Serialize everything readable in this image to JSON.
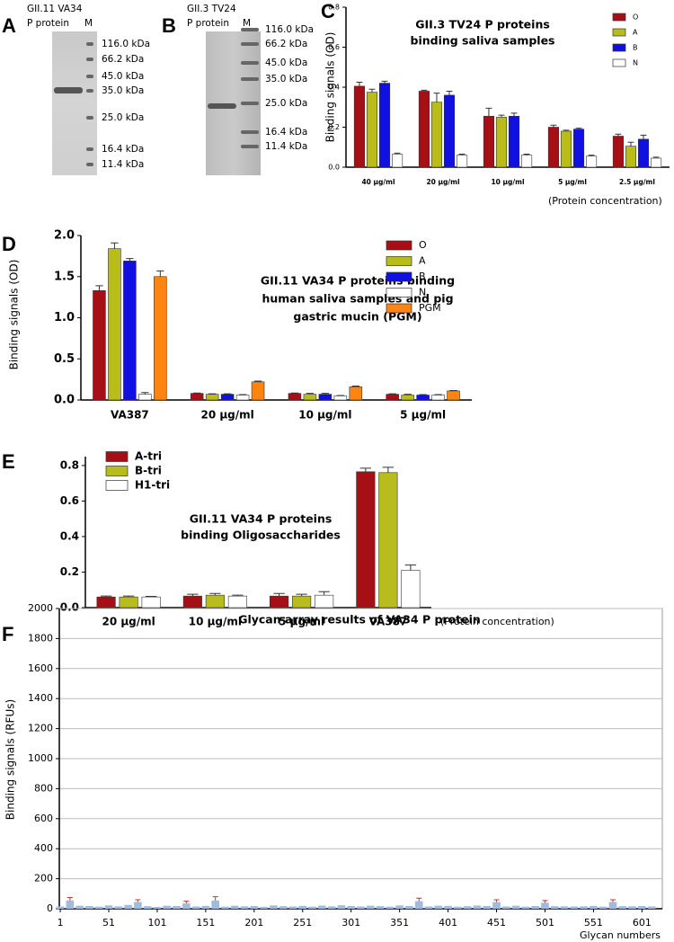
{
  "gels": [
    {
      "panel_label": "A",
      "title": [
        "GII.11 VA34",
        "P protein"
      ],
      "lane_label": "M",
      "markers": [
        "116.0 kDa",
        "66.2 kDa",
        "45.0 kDa",
        "35.0 kDa",
        "25.0 kDa",
        "16.4 kDa",
        "11.4 kDa"
      ]
    },
    {
      "panel_label": "B",
      "title": [
        "GII.3 TV24",
        "P protein"
      ],
      "lane_label": "M",
      "markers": [
        "116.0 kDa",
        "66.2 kDa",
        "45.0 kDa",
        "35.0 kDa",
        "25.0 kDa",
        "16.4 kDa",
        "11.4 kDa"
      ]
    }
  ],
  "chart_data": [
    {
      "type": "bar",
      "panel_label": "C",
      "title": [
        "GII.3 TV24 P proteins",
        "binding saliva samples"
      ],
      "y_label": "Binding signals (OD)",
      "x_label": "(Protein concentration)",
      "categories": [
        "40 μg/ml",
        "20 μg/ml",
        "10 μg/ml",
        "5 μg/ml",
        "2.5 μg/ml"
      ],
      "ylim": [
        0,
        0.8
      ],
      "yticks": [
        {
          "value": 0,
          "label": "0.0"
        },
        0.2,
        0.4,
        0.6,
        0.8
      ],
      "grid": false,
      "series": [
        {
          "name": "O",
          "color": "#a50f15",
          "values": [
            0.405,
            0.38,
            0.255,
            0.2,
            0.155
          ],
          "errors": [
            0.02,
            0.005,
            0.04,
            0.01,
            0.01
          ]
        },
        {
          "name": "A",
          "color": "#b8bc1c",
          "values": [
            0.375,
            0.325,
            0.25,
            0.18,
            0.105
          ],
          "errors": [
            0.015,
            0.045,
            0.01,
            0.005,
            0.02
          ]
        },
        {
          "name": "B",
          "color": "#1010e0",
          "values": [
            0.42,
            0.36,
            0.255,
            0.19,
            0.14
          ],
          "errors": [
            0.01,
            0.02,
            0.015,
            0.005,
            0.02
          ]
        },
        {
          "name": "N",
          "color": "#ffffff",
          "values": [
            0.065,
            0.06,
            0.06,
            0.055,
            0.045
          ],
          "errors": [
            0.005,
            0.005,
            0.005,
            0.005,
            0.005
          ]
        }
      ]
    },
    {
      "type": "bar",
      "panel_label": "D",
      "title": [
        "GII.11 VA34 P proteins binding",
        "human saliva samples and pig",
        "gastric mucin (PGM)"
      ],
      "y_label": "Binding signals (OD)",
      "categories": [
        "VA387",
        "20 μg/ml",
        "10 μg/ml",
        "5 μg/ml"
      ],
      "ylim": [
        0,
        2
      ],
      "yticks": [
        {
          "value": 0,
          "label": "0.0"
        },
        0.5,
        {
          "value": 1,
          "label": "1.0"
        },
        1.5,
        {
          "value": 2,
          "label": "2.0"
        }
      ],
      "grid": false,
      "series": [
        {
          "name": "O",
          "color": "#a50f15",
          "values": [
            1.33,
            0.08,
            0.08,
            0.07
          ],
          "errors": [
            0.06,
            0.005,
            0.005,
            0.005
          ]
        },
        {
          "name": "A",
          "color": "#b8bc1c",
          "values": [
            1.84,
            0.07,
            0.07,
            0.06
          ],
          "errors": [
            0.07,
            0.005,
            0.01,
            0.01
          ]
        },
        {
          "name": "B",
          "color": "#1010e0",
          "values": [
            1.69,
            0.07,
            0.07,
            0.06
          ],
          "errors": [
            0.03,
            0.005,
            0.01,
            0.005
          ]
        },
        {
          "name": "N",
          "color": "#ffffff",
          "values": [
            0.07,
            0.06,
            0.05,
            0.06
          ],
          "errors": [
            0.02,
            0.005,
            0.005,
            0.005
          ]
        },
        {
          "name": "PGM",
          "color": "#ff8410",
          "values": [
            1.5,
            0.22,
            0.16,
            0.11
          ],
          "errors": [
            0.07,
            0.01,
            0.01,
            0.005
          ]
        }
      ]
    },
    {
      "type": "bar",
      "panel_label": "E",
      "title": [
        "GII.11 VA34 P proteins",
        "binding Oligosaccharides"
      ],
      "x_label": "(Protein concentration)",
      "categories": [
        "20 μg/ml",
        "10 μg/ml",
        "5 μg/ml",
        "VA387"
      ],
      "ylim": [
        0,
        0.85
      ],
      "yticks": [
        {
          "value": 0,
          "label": "0.0"
        },
        0.2,
        0.4,
        0.6,
        0.8
      ],
      "grid": false,
      "series": [
        {
          "name": "A-tri",
          "color": "#a50f15",
          "values": [
            0.06,
            0.065,
            0.065,
            0.765
          ],
          "errors": [
            0.005,
            0.01,
            0.015,
            0.02
          ]
        },
        {
          "name": "B-tri",
          "color": "#b8bc1c",
          "values": [
            0.06,
            0.07,
            0.065,
            0.76
          ],
          "errors": [
            0.005,
            0.01,
            0.01,
            0.03
          ]
        },
        {
          "name": "H1-tri",
          "color": "#ffffff",
          "values": [
            0.06,
            0.065,
            0.07,
            0.21
          ],
          "errors": [
            0.003,
            0.005,
            0.02,
            0.03
          ]
        }
      ]
    },
    {
      "type": "bar",
      "panel_label": "F",
      "title": [
        "Glycan array results of VA34 P protein"
      ],
      "y_label": "Binding signals (RFUs)",
      "x_label": "Glycan numbers",
      "xlim": [
        0,
        622
      ],
      "xticks": [
        1,
        51,
        101,
        151,
        201,
        251,
        301,
        351,
        401,
        451,
        501,
        551,
        601
      ],
      "ylim": [
        0,
        2000
      ],
      "yticks": [
        0,
        200,
        400,
        600,
        800,
        1000,
        1200,
        1400,
        1600,
        1800,
        2000
      ],
      "grid": true,
      "x": [
        1,
        11,
        21,
        31,
        41,
        51,
        61,
        71,
        81,
        91,
        101,
        111,
        121,
        131,
        141,
        151,
        161,
        171,
        181,
        191,
        201,
        211,
        221,
        231,
        241,
        251,
        261,
        271,
        281,
        291,
        301,
        311,
        321,
        331,
        341,
        351,
        361,
        371,
        381,
        391,
        401,
        411,
        421,
        431,
        441,
        451,
        461,
        471,
        481,
        491,
        501,
        511,
        521,
        531,
        541,
        551,
        561,
        571,
        581,
        591,
        601,
        611
      ],
      "series": [
        {
          "color": "#9fbbe0",
          "values": [
            15,
            55,
            20,
            18,
            14,
            22,
            16,
            25,
            45,
            17,
            12,
            20,
            18,
            35,
            15,
            19,
            55,
            14,
            20,
            16,
            18,
            13,
            22,
            17,
            15,
            19,
            14,
            21,
            16,
            23,
            18,
            15,
            20,
            17,
            14,
            22,
            18,
            50,
            15,
            20,
            19,
            14,
            17,
            21,
            18,
            45,
            15,
            20,
            14,
            18,
            40,
            17,
            16,
            15,
            16,
            19,
            14,
            45,
            17,
            16,
            18,
            15
          ],
          "errors": [
            null,
            20,
            null,
            null,
            null,
            null,
            null,
            null,
            15,
            null,
            null,
            null,
            null,
            15,
            null,
            null,
            25,
            null,
            null,
            null,
            null,
            null,
            null,
            null,
            null,
            null,
            null,
            null,
            null,
            null,
            null,
            null,
            null,
            null,
            null,
            null,
            null,
            20,
            null,
            null,
            null,
            null,
            null,
            null,
            null,
            15,
            null,
            null,
            null,
            null,
            15,
            null,
            null,
            null,
            null,
            null,
            null,
            15,
            null,
            null,
            null,
            null
          ]
        }
      ]
    }
  ]
}
